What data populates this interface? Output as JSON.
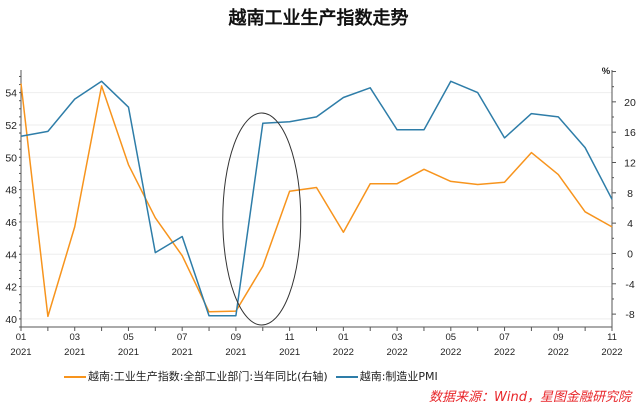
{
  "chart_data": {
    "type": "line",
    "title": "越南工业生产指数走势",
    "x": [
      "01\n2021",
      "02\n2021",
      "03\n2021",
      "04\n2021",
      "05\n2021",
      "06\n2021",
      "07\n2021",
      "08\n2021",
      "09\n2021",
      "10\n2021",
      "11\n2021",
      "12\n2021",
      "01\n2022",
      "02\n2022",
      "03\n2022",
      "04\n2022",
      "05\n2022",
      "06\n2022",
      "07\n2022",
      "08\n2022",
      "09\n2022",
      "10\n2022",
      "11\n2022"
    ],
    "x_tick_labels": [
      [
        "01",
        "2021"
      ],
      [
        "03",
        "2021"
      ],
      [
        "05",
        "2021"
      ],
      [
        "07",
        "2021"
      ],
      [
        "09",
        "2021"
      ],
      [
        "11",
        "2021"
      ],
      [
        "01",
        "2022"
      ],
      [
        "03",
        "2022"
      ],
      [
        "05",
        "2022"
      ],
      [
        "07",
        "2022"
      ],
      [
        "09",
        "2022"
      ],
      [
        "11",
        "2022"
      ]
    ],
    "left_axis": {
      "ticks": [
        40,
        42,
        44,
        46,
        48,
        50,
        52,
        54
      ],
      "ylim": [
        39.5,
        55.4
      ]
    },
    "right_axis": {
      "unit": "%",
      "ticks": [
        -8,
        -4,
        0,
        4,
        8,
        12,
        16,
        20
      ],
      "ylim": [
        -9.7,
        24.2
      ]
    },
    "series": [
      {
        "name": "越南:工业生产指数:全部工业部门:当年同比(右轴)",
        "axis": "right",
        "color": "#F7941D",
        "values": [
          22.4,
          -8.3,
          3.5,
          22.1,
          11.7,
          4.7,
          -0.3,
          -7.7,
          -7.6,
          -1.7,
          8.2,
          8.7,
          2.8,
          9.2,
          9.2,
          11.1,
          9.5,
          9.1,
          9.4,
          13.3,
          10.4,
          5.5,
          3.5
        ]
      },
      {
        "name": "越南:制造业PMI",
        "axis": "left",
        "color": "#2E7DA8",
        "values": [
          51.3,
          51.6,
          53.6,
          54.7,
          53.1,
          44.1,
          45.1,
          40.2,
          40.2,
          52.1,
          52.2,
          52.5,
          53.7,
          54.3,
          51.7,
          51.7,
          54.7,
          54.0,
          51.2,
          52.7,
          52.5,
          50.6,
          47.4
        ]
      }
    ],
    "grid": true,
    "legend_position": "bottom",
    "annotation": {
      "shape": "ellipse",
      "around": [
        "09\n2021",
        "10\n2021",
        "11\n2021"
      ]
    }
  },
  "source": "数据来源：Wind，星图金融研究院"
}
